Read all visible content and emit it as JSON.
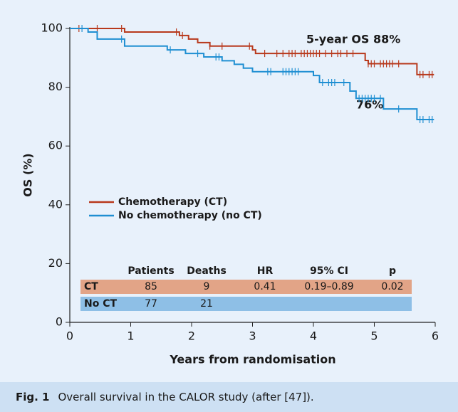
{
  "chart_data": {
    "type": "step",
    "y_label": "OS (%)",
    "x_label": "Years from randomisation",
    "xlim": [
      0,
      6
    ],
    "ylim": [
      0,
      100
    ],
    "xticks": [
      0,
      1,
      2,
      3,
      4,
      5,
      6
    ],
    "yticks": [
      0,
      20,
      40,
      60,
      80,
      100
    ],
    "series": [
      {
        "name": "Chemotherapy (CT)",
        "color": "#b8391c",
        "x": [
          0,
          0.9,
          1.8,
          1.95,
          2.1,
          2.3,
          3.0,
          3.05,
          4.85,
          4.9,
          5.7,
          5.98
        ],
        "values": [
          100,
          98.8,
          97.6,
          96.4,
          95.2,
          94,
          92.7,
          91.5,
          89.1,
          88,
          84.3,
          84.3
        ],
        "censored": [
          0.15,
          0.45,
          0.85,
          1.75,
          1.85,
          2.3,
          2.5,
          2.95,
          3.2,
          3.4,
          3.5,
          3.6,
          3.65,
          3.7,
          3.8,
          3.85,
          3.9,
          3.95,
          4.0,
          4.05,
          4.1,
          4.2,
          4.3,
          4.4,
          4.45,
          4.55,
          4.65,
          4.9,
          4.95,
          5.0,
          5.1,
          5.15,
          5.2,
          5.25,
          5.3,
          5.4,
          5.75,
          5.8,
          5.9,
          5.95
        ]
      },
      {
        "name": "No chemotherapy (no CT)",
        "color": "#1f8fd2",
        "x": [
          0,
          0.3,
          0.45,
          0.9,
          1.6,
          1.9,
          2.2,
          2.5,
          2.7,
          2.85,
          3.0,
          4.0,
          4.1,
          4.6,
          4.7,
          5.15,
          5.7,
          5.98
        ],
        "values": [
          100,
          98.8,
          96.4,
          94,
          92.7,
          91.5,
          90.3,
          89,
          87.8,
          86.5,
          85.3,
          84,
          81.6,
          78.7,
          76.2,
          72.6,
          69,
          69
        ],
        "censored": [
          0.2,
          0.85,
          1.65,
          2.1,
          2.4,
          2.45,
          3.25,
          3.3,
          3.5,
          3.55,
          3.6,
          3.65,
          3.7,
          3.75,
          4.15,
          4.25,
          4.3,
          4.35,
          4.5,
          4.75,
          4.8,
          4.85,
          4.9,
          4.95,
          5.0,
          5.1,
          5.4,
          5.75,
          5.8,
          5.9,
          5.95
        ]
      }
    ],
    "annotations": [
      "5-year OS 88%",
      "76%"
    ],
    "table": {
      "header": [
        "Patients",
        "Deaths",
        "HR",
        "95% CI",
        "p"
      ],
      "rows": [
        [
          "CT",
          85,
          9,
          0.41,
          "0.19–0.89",
          0.02
        ],
        [
          "No CT",
          77,
          21
        ]
      ]
    }
  },
  "caption": {
    "label": "Fig. 1",
    "text": "Overall survival in the CALOR study (after [47])."
  }
}
